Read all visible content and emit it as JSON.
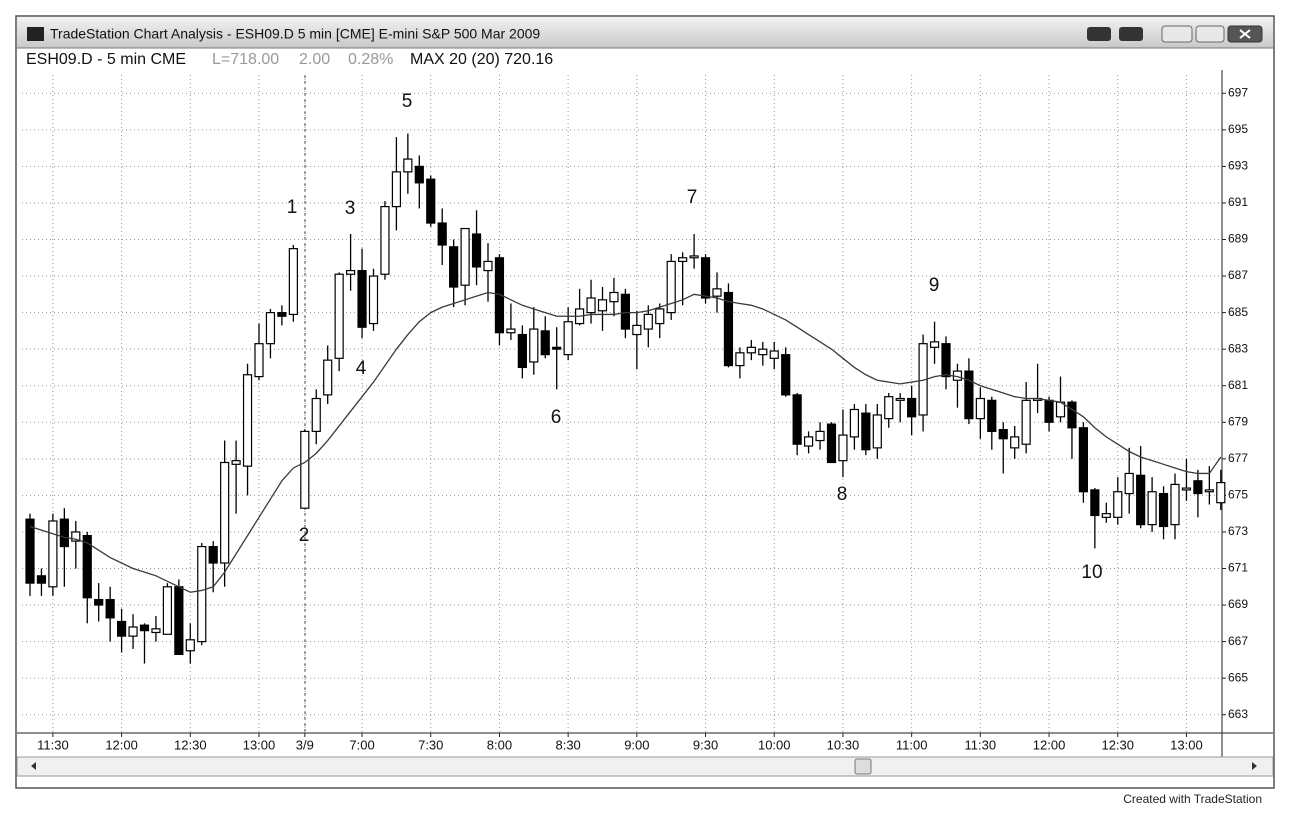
{
  "window_title": "TradeStation Chart Analysis - ESH09.D  5 min [CME] E-mini S&P 500 Mar 2009",
  "footer": "Created with TradeStation",
  "chart_data": {
    "type": "candlestick",
    "subtitle": {
      "symbol": "ESH09.D - 5 min CME",
      "last": "L=718.00",
      "change": "2.00",
      "change_pct": "0.28%",
      "indicator": "MAX 20 (20) 720.16"
    },
    "categories": [
      null,
      null,
      "11:30",
      null,
      null,
      null,
      null,
      null,
      "12:00",
      null,
      null,
      null,
      null,
      null,
      "12:30",
      null,
      null,
      null,
      null,
      null,
      "13:00",
      null,
      null,
      null,
      "3/9",
      null,
      null,
      null,
      null,
      "7:00",
      null,
      null,
      null,
      null,
      null,
      "7:30",
      null,
      null,
      null,
      null,
      null,
      "8:00",
      null,
      null,
      null,
      null,
      null,
      "8:30",
      null,
      null,
      null,
      null,
      null,
      "9:00",
      null,
      null,
      null,
      null,
      null,
      "9:30",
      null,
      null,
      null,
      null,
      null,
      "10:00",
      null,
      null,
      null,
      null,
      null,
      "10:30",
      null,
      null,
      null,
      null,
      null,
      "11:00",
      null,
      null,
      null,
      null,
      null,
      "11:30",
      null,
      null,
      null,
      null,
      null,
      "12:00",
      null,
      null,
      null,
      null,
      null,
      "12:30",
      null,
      null,
      null,
      null,
      null,
      "13:00",
      null,
      null,
      null
    ],
    "open": [
      673.7,
      670.6,
      670.0,
      673.7,
      672.5,
      672.8,
      669.3,
      669.3,
      668.1,
      667.3,
      667.9,
      667.5,
      667.4,
      670.0,
      666.5,
      667.0,
      672.2,
      671.3,
      676.7,
      676.6,
      681.5,
      683.3,
      685.0,
      684.9,
      674.3,
      678.5,
      680.5,
      682.5,
      687.1,
      687.3,
      684.4,
      687.1,
      690.8,
      692.7,
      693.0,
      692.3,
      689.9,
      688.6,
      686.5,
      689.3,
      687.3,
      688.0,
      683.9,
      683.8,
      682.3,
      684.0,
      683.1,
      682.7,
      684.4,
      685.0,
      685.1,
      685.6,
      686.0,
      683.8,
      684.1,
      684.4,
      685.0,
      687.8,
      688.0,
      688.0,
      685.9,
      686.1,
      682.1,
      682.8,
      682.7,
      682.5,
      682.7,
      680.5,
      677.7,
      678.0,
      678.9,
      676.9,
      678.2,
      679.5,
      677.6,
      679.2,
      680.2,
      680.3,
      679.4,
      683.1,
      683.3,
      681.3,
      681.8,
      679.2,
      680.2,
      678.6,
      677.6,
      677.8,
      680.2,
      680.2,
      679.3,
      680.1,
      678.7,
      675.3,
      673.8,
      673.8,
      675.1,
      676.1,
      673.4,
      675.1,
      673.4,
      675.3,
      675.8,
      675.2,
      674.6
    ],
    "high": [
      674.0,
      671.0,
      674.0,
      674.3,
      673.6,
      673.0,
      670.2,
      670.0,
      668.8,
      668.5,
      668.0,
      668.4,
      670.2,
      670.4,
      668.0,
      672.4,
      672.5,
      678.0,
      678.0,
      682.2,
      684.4,
      685.2,
      685.4,
      688.7,
      678.6,
      680.8,
      683.2,
      687.2,
      689.3,
      688.5,
      687.4,
      691.1,
      694.6,
      694.8,
      693.6,
      692.5,
      690.7,
      689.0,
      689.6,
      690.6,
      688.8,
      688.2,
      685.5,
      684.3,
      685.3,
      684.8,
      684.2,
      685.3,
      686.3,
      686.8,
      686.4,
      686.9,
      686.3,
      685.1,
      685.4,
      685.5,
      688.2,
      688.3,
      689.3,
      688.2,
      687.2,
      686.6,
      683.1,
      683.5,
      683.4,
      683.4,
      683.1,
      680.6,
      678.5,
      679.0,
      679.0,
      679.7,
      680.0,
      680.0,
      680.0,
      680.6,
      680.6,
      681.0,
      683.8,
      684.5,
      683.7,
      682.2,
      682.5,
      680.9,
      680.4,
      679.0,
      678.8,
      681.2,
      682.2,
      680.4,
      681.5,
      680.2,
      679.0,
      675.4,
      674.6,
      676.0,
      677.6,
      677.7,
      676.0,
      675.5,
      676.2,
      677.0,
      676.4,
      676.6,
      676.4
    ],
    "low": [
      669.5,
      669.5,
      669.5,
      670.0,
      671.0,
      668.0,
      668.1,
      667.0,
      666.4,
      666.6,
      665.8,
      667.0,
      667.4,
      666.3,
      665.8,
      666.8,
      669.7,
      670.0,
      674.0,
      675.0,
      681.3,
      682.5,
      684.3,
      684.5,
      674.3,
      677.8,
      680.0,
      681.8,
      686.2,
      683.6,
      684.0,
      686.8,
      689.5,
      691.5,
      690.7,
      689.7,
      687.6,
      685.3,
      685.4,
      686.5,
      685.6,
      683.2,
      683.5,
      681.4,
      681.6,
      682.5,
      680.8,
      682.4,
      684.3,
      684.4,
      684.0,
      684.8,
      683.6,
      681.9,
      683.1,
      683.6,
      684.6,
      685.4,
      687.4,
      685.5,
      685.0,
      682.0,
      681.4,
      682.4,
      682.1,
      681.9,
      680.4,
      677.2,
      677.3,
      677.5,
      676.8,
      676.0,
      677.5,
      677.2,
      677.0,
      678.7,
      679.0,
      678.3,
      678.5,
      682.2,
      680.8,
      679.8,
      678.9,
      678.1,
      677.5,
      676.2,
      677.0,
      677.3,
      679.5,
      678.5,
      679.0,
      677.0,
      674.6,
      672.1,
      673.5,
      673.4,
      674.0,
      673.2,
      673.0,
      672.6,
      672.6,
      674.7,
      673.8,
      674.5,
      674.2
    ],
    "close": [
      670.2,
      670.2,
      673.6,
      672.2,
      673.0,
      669.4,
      669.0,
      668.3,
      667.3,
      667.8,
      667.6,
      667.7,
      670.0,
      666.3,
      667.1,
      672.2,
      671.3,
      676.8,
      676.9,
      681.6,
      683.3,
      685.0,
      684.8,
      688.5,
      678.5,
      680.3,
      682.4,
      687.1,
      687.3,
      684.2,
      687.0,
      690.8,
      692.7,
      693.4,
      692.1,
      689.9,
      688.7,
      686.4,
      689.6,
      687.5,
      687.8,
      683.9,
      684.1,
      682.0,
      684.1,
      682.7,
      683.0,
      684.5,
      685.2,
      685.8,
      685.7,
      686.1,
      684.1,
      684.3,
      684.9,
      685.2,
      687.8,
      688.0,
      688.1,
      685.8,
      686.3,
      682.1,
      682.8,
      683.1,
      683.0,
      682.9,
      680.5,
      677.8,
      678.2,
      678.5,
      676.8,
      678.3,
      679.7,
      677.5,
      679.4,
      680.4,
      680.3,
      679.3,
      683.3,
      683.4,
      681.5,
      681.8,
      679.2,
      680.3,
      678.5,
      678.1,
      678.2,
      680.2,
      680.3,
      679.0,
      680.1,
      678.7,
      675.2,
      673.9,
      674.0,
      675.2,
      676.2,
      673.4,
      675.2,
      673.3,
      675.6,
      675.4,
      675.1,
      675.3,
      675.7
    ],
    "up_color": "#ffffff",
    "down_color": "#000000",
    "ma": {
      "color": "#3a3a3a",
      "values": [
        673.3,
        673.1,
        672.9,
        672.7,
        672.6,
        672.4,
        672.0,
        671.6,
        671.3,
        671.0,
        670.8,
        670.6,
        670.3,
        670.0,
        669.7,
        669.8,
        670.0,
        670.8,
        671.8,
        672.8,
        673.8,
        674.8,
        675.8,
        676.5,
        676.8,
        677.3,
        678.0,
        678.8,
        679.6,
        680.4,
        681.2,
        682.1,
        683.0,
        683.8,
        684.5,
        685.0,
        685.3,
        685.5,
        685.7,
        685.9,
        686.1,
        686.0,
        685.7,
        685.4,
        685.2,
        685.0,
        684.8,
        684.8,
        684.8,
        684.9,
        684.9,
        684.9,
        685.0,
        685.0,
        685.1,
        685.3,
        685.5,
        685.7,
        686.0,
        685.9,
        685.8,
        685.6,
        685.5,
        685.4,
        685.2,
        684.9,
        684.6,
        684.2,
        683.8,
        683.4,
        683.0,
        682.5,
        682.0,
        681.6,
        681.3,
        681.2,
        681.1,
        681.2,
        681.3,
        681.5,
        681.6,
        681.5,
        681.3,
        681.0,
        680.8,
        680.6,
        680.4,
        680.3,
        680.3,
        680.2,
        680.1,
        679.7,
        679.3,
        678.7,
        678.2,
        677.8,
        677.4,
        677.1,
        676.9,
        676.7,
        676.5,
        676.3,
        676.2,
        676.2,
        677.1
      ]
    },
    "ylim": [
      662,
      698
    ],
    "yticks": [
      663,
      665,
      667,
      669,
      671,
      673,
      675,
      677,
      679,
      681,
      683,
      685,
      687,
      689,
      691,
      693,
      695,
      697
    ],
    "grid": true,
    "annotations": [
      "1",
      "2",
      "3",
      "4",
      "5",
      "6",
      "7",
      "8",
      "9",
      "10"
    ]
  }
}
